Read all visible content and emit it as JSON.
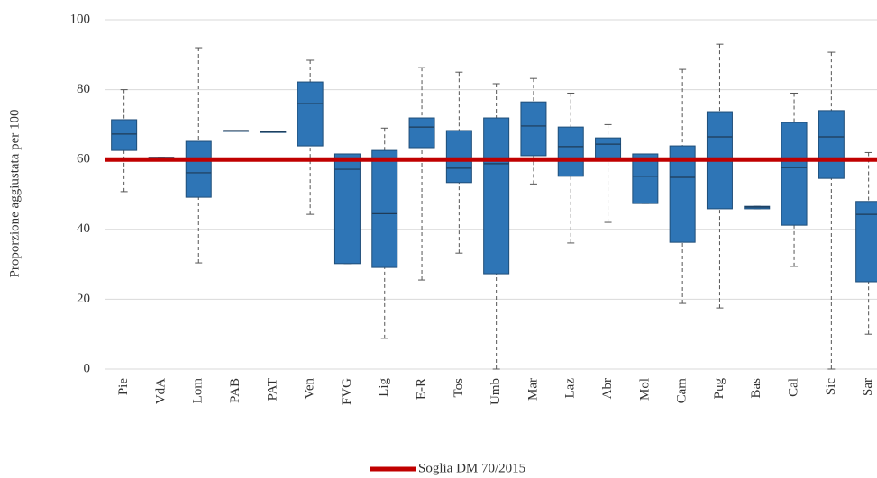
{
  "chart_data": {
    "type": "box",
    "ylabel": "Proporzione aggiustata per 100",
    "categories": [
      "Pie",
      "VdA",
      "Lom",
      "PAB",
      "PAT",
      "Ven",
      "FVG",
      "Lig",
      "E-R",
      "Tos",
      "Umb",
      "Mar",
      "Laz",
      "Abr",
      "Mol",
      "Cam",
      "Pug",
      "Bas",
      "Cal",
      "Sic",
      "Sar"
    ],
    "min": [
      50.8,
      60.6,
      30.4,
      68.3,
      68.0,
      44.3,
      30.2,
      8.8,
      25.5,
      33.2,
      0,
      53.0,
      36.1,
      42.0,
      47.4,
      18.8,
      17.5,
      45.9,
      29.4,
      0,
      10
    ],
    "q1": [
      62.6,
      60.6,
      49.2,
      68.3,
      68.0,
      63.9,
      30.2,
      29.1,
      63.4,
      53.4,
      27.3,
      61.1,
      55.2,
      59.8,
      47.4,
      36.3,
      45.9,
      45.9,
      41.2,
      54.6,
      25
    ],
    "median": [
      67.3,
      60.6,
      56.2,
      68.3,
      68.0,
      76.0,
      57.2,
      44.5,
      69.3,
      57.5,
      58.8,
      69.6,
      63.7,
      64.4,
      55.2,
      54.9,
      66.5,
      46.4,
      57.7,
      66.5,
      44.3
    ],
    "q3": [
      71.4,
      60.6,
      65.2,
      68.3,
      68.0,
      82.2,
      61.6,
      62.6,
      71.9,
      68.3,
      71.9,
      76.5,
      69.3,
      66.2,
      61.6,
      63.9,
      73.7,
      46.6,
      70.6,
      74.0,
      48
    ],
    "max": [
      80.0,
      60.6,
      92.0,
      68.3,
      68.0,
      88.4,
      61.6,
      69.0,
      86.3,
      85.0,
      81.7,
      83.2,
      79.0,
      70.0,
      61.6,
      85.8,
      93.0,
      46.6,
      79.0,
      90.7,
      62
    ],
    "color": "#2e75b6",
    "threshold": {
      "name": "Soglia DM 70/2015",
      "value": 60,
      "color": "#c00000"
    },
    "ylim": [
      0,
      100
    ],
    "yticks": [
      0,
      20,
      40,
      60,
      80,
      100
    ],
    "grid": true
  }
}
